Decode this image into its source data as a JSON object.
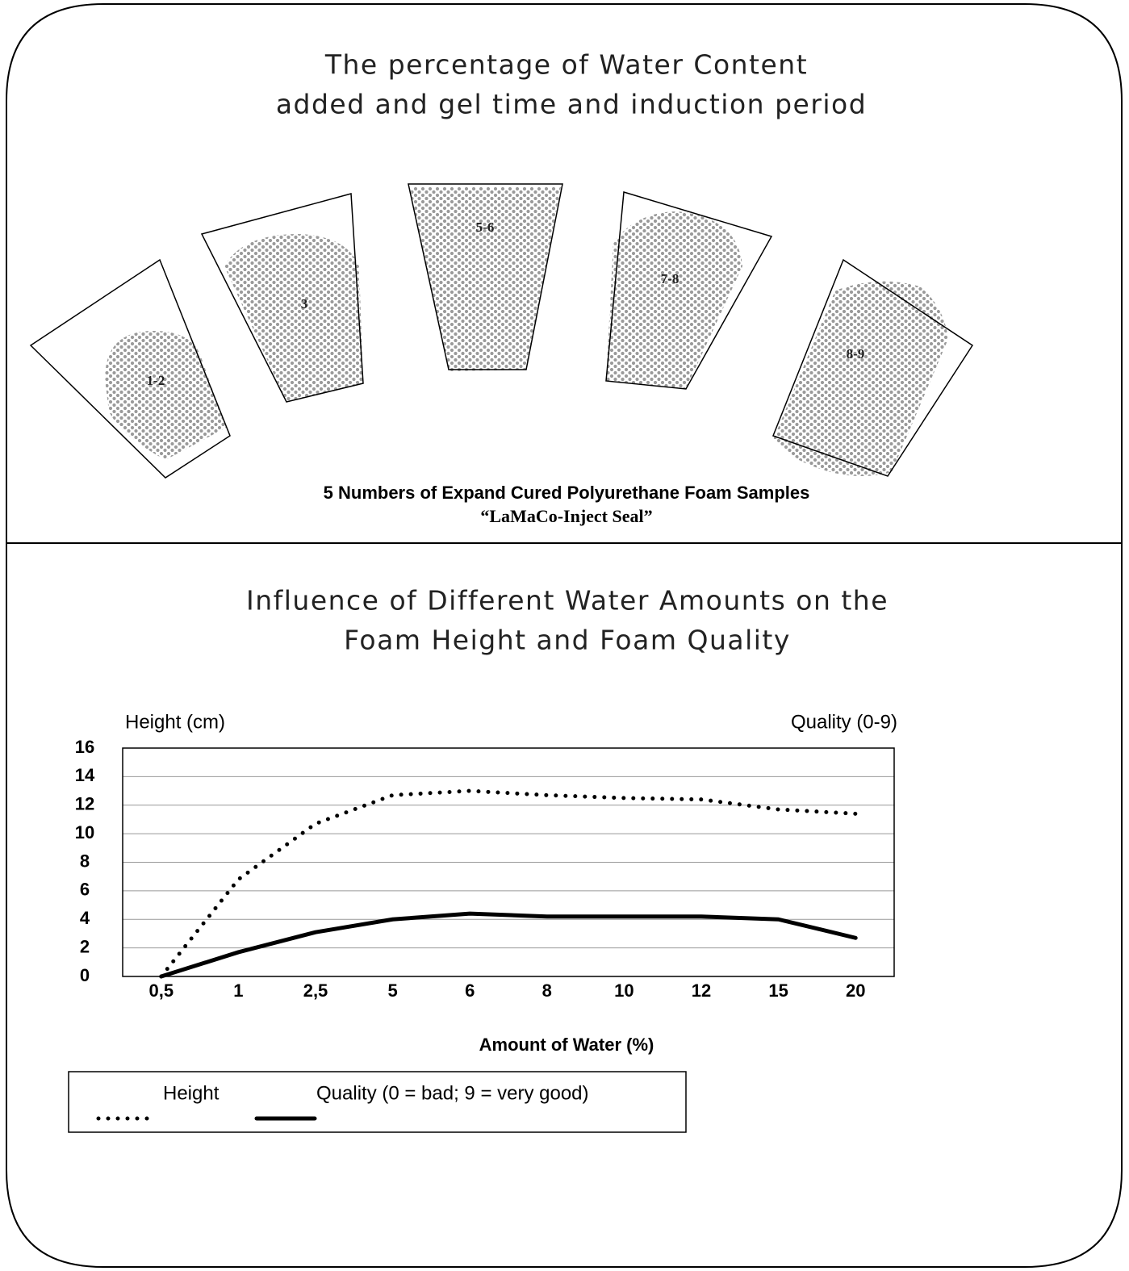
{
  "diagram": {
    "title": [
      "The percentage of Water Content",
      "added and gel time and induction period"
    ],
    "samples": [
      "1-2",
      "3",
      "5-6",
      "7-8",
      "8-9"
    ],
    "caption": [
      "5 Numbers of Expand Cured Polyurethane Foam Samples",
      "“LaMaCo-Inject Seal”"
    ]
  },
  "chart_data": {
    "type": "line",
    "title": [
      "Influence of Different Water Amounts on the",
      "Foam Height and Foam Quality"
    ],
    "ylabel": "Height (cm)",
    "y2label": "Quality (0-9)",
    "xlabel": "Amount of Water (%)",
    "categories": [
      "0,5",
      "1",
      "2,5",
      "5",
      "6",
      "8",
      "10",
      "12",
      "15",
      "20"
    ],
    "series": [
      {
        "name": "Height",
        "color": "#000000",
        "style": "dotted",
        "values": [
          0,
          6.8,
          10.7,
          12.7,
          13.0,
          12.7,
          12.5,
          12.4,
          11.7,
          11.4
        ]
      },
      {
        "name": "Quality (0 = bad; 9 = very good)",
        "color": "#000000",
        "style": "solid",
        "values": [
          0,
          1.7,
          3.1,
          4.0,
          4.4,
          4.2,
          4.2,
          4.2,
          4.0,
          2.7
        ]
      }
    ],
    "ylim": [
      0,
      16
    ],
    "yticks": [
      0,
      2,
      4,
      6,
      8,
      10,
      12,
      14,
      16
    ],
    "grid": true
  }
}
